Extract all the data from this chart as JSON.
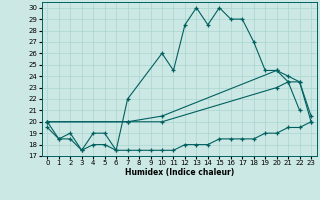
{
  "xlabel": "Humidex (Indice chaleur)",
  "ylabel": "",
  "bg_color": "#cce8e4",
  "line_color": "#006060",
  "grid_color": "#aad4d0",
  "xlim": [
    -0.5,
    23.5
  ],
  "ylim": [
    17,
    30.5
  ],
  "yticks": [
    17,
    18,
    19,
    20,
    21,
    22,
    23,
    24,
    25,
    26,
    27,
    28,
    29,
    30
  ],
  "xticks": [
    0,
    1,
    2,
    3,
    4,
    5,
    6,
    7,
    8,
    9,
    10,
    11,
    12,
    13,
    14,
    15,
    16,
    17,
    18,
    19,
    20,
    21,
    22,
    23
  ],
  "curve_main": {
    "x": [
      0,
      1,
      2,
      3,
      4,
      5,
      6,
      7,
      10,
      11,
      12,
      13,
      14,
      15,
      16,
      17,
      18,
      19,
      20,
      21,
      22
    ],
    "y": [
      20.0,
      18.5,
      19.0,
      17.5,
      19.0,
      19.0,
      17.5,
      22.0,
      26.0,
      24.5,
      28.5,
      30.0,
      28.5,
      30.0,
      29.0,
      29.0,
      27.0,
      24.5,
      24.5,
      23.5,
      21.0
    ]
  },
  "curve_flat_min": {
    "x": [
      0,
      1,
      2,
      3,
      4,
      5,
      6,
      7,
      8,
      9,
      10,
      11,
      12,
      13,
      14,
      15,
      16,
      17,
      18,
      19,
      20,
      21,
      22,
      23
    ],
    "y": [
      19.5,
      18.5,
      18.5,
      17.5,
      18.0,
      18.0,
      17.5,
      17.5,
      17.5,
      17.5,
      17.5,
      17.5,
      18.0,
      18.0,
      18.0,
      18.5,
      18.5,
      18.5,
      18.5,
      19.0,
      19.0,
      19.5,
      19.5,
      20.0
    ]
  },
  "curve_mid": {
    "x": [
      0,
      7,
      10,
      20,
      21,
      22,
      23
    ],
    "y": [
      20.0,
      20.0,
      20.0,
      23.0,
      23.5,
      23.5,
      20.0
    ]
  },
  "curve_upper": {
    "x": [
      0,
      7,
      10,
      20,
      21,
      22,
      23
    ],
    "y": [
      20.0,
      20.0,
      20.5,
      24.5,
      24.0,
      23.5,
      20.5
    ]
  }
}
